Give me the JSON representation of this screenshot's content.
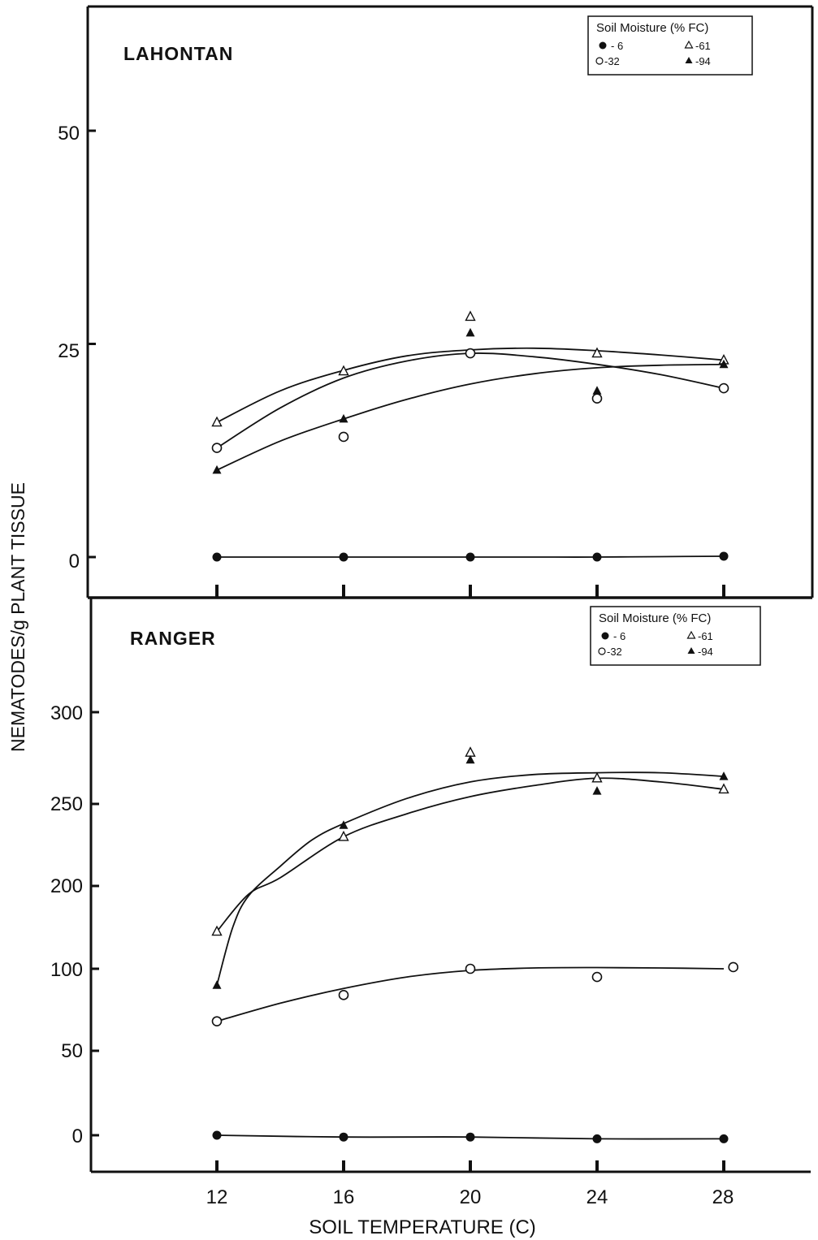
{
  "figure": {
    "xlabel": "SOIL TEMPERATURE (C)",
    "ylabel": "NEMATODES/g PLANT TISSUE"
  },
  "chart_data": [
    {
      "type": "scatter",
      "title": "LAHONTAN",
      "x_ticks": [
        "12",
        "16",
        "20",
        "24",
        "28"
      ],
      "y_ticks": [
        {
          "value": 0,
          "label": "0"
        },
        {
          "value": 25,
          "label": "25"
        },
        {
          "value": 50,
          "label": "50"
        }
      ],
      "ylim": [
        -4.5,
        63
      ],
      "legend": {
        "title": "Soil Moisture (% FC)",
        "entries": [
          {
            "label": "- 6",
            "marker": "filled-circle"
          },
          {
            "label": "-61",
            "marker": "open-triangle"
          },
          {
            "label": "-32",
            "marker": "open-circle"
          },
          {
            "label": "-94",
            "marker": "filled-triangle"
          }
        ]
      },
      "series": [
        {
          "marker": "filled-circle",
          "x": [
            12,
            16,
            20,
            24,
            28
          ],
          "y": [
            0,
            0,
            0,
            0,
            0.1
          ]
        },
        {
          "marker": "open-circle",
          "x": [
            12,
            16,
            20,
            24,
            28
          ],
          "y": [
            12.8,
            14.1,
            23.9,
            18.6,
            19.8
          ]
        },
        {
          "marker": "open-triangle",
          "x": [
            12,
            16,
            20,
            24,
            28
          ],
          "y": [
            15.8,
            21.8,
            28.2,
            23.9,
            23.1
          ]
        },
        {
          "marker": "filled-triangle",
          "x": [
            12,
            16,
            20,
            24,
            28
          ],
          "y": [
            10.2,
            16.2,
            26.3,
            19.5,
            22.6
          ]
        }
      ],
      "curves": [
        {
          "x": [
            12,
            14,
            16,
            18,
            20,
            22,
            24,
            26,
            28
          ],
          "y": [
            0,
            0,
            0,
            0,
            0,
            0,
            0,
            0.05,
            0.1
          ]
        },
        {
          "x": [
            12,
            14,
            16,
            18,
            20,
            22,
            24,
            26,
            28
          ],
          "y": [
            12.8,
            17.5,
            21.0,
            23.0,
            23.9,
            23.5,
            22.6,
            21.4,
            19.8
          ]
        },
        {
          "x": [
            12,
            14,
            16,
            18,
            20,
            22,
            24,
            26,
            28
          ],
          "y": [
            15.8,
            19.5,
            21.9,
            23.6,
            24.3,
            24.5,
            24.2,
            23.7,
            23.1
          ]
        },
        {
          "x": [
            12,
            14,
            16,
            18,
            20,
            22,
            24,
            26,
            28
          ],
          "y": [
            10.2,
            13.6,
            16.2,
            18.5,
            20.3,
            21.5,
            22.2,
            22.5,
            22.6
          ]
        }
      ]
    },
    {
      "type": "scatter",
      "title": "RANGER",
      "x_ticks": [
        "12",
        "16",
        "20",
        "24",
        "28"
      ],
      "y_ticks": [
        {
          "value": 0,
          "label": "0"
        },
        {
          "value": 50,
          "label": "50"
        },
        {
          "value": 100,
          "label": "100"
        },
        {
          "value": 200,
          "label": "200"
        },
        {
          "value": 250,
          "label": "250"
        },
        {
          "value": 300,
          "label": "300"
        }
      ],
      "legend": {
        "title": "Soil Moisture (% FC)",
        "entries": [
          {
            "label": "- 6",
            "marker": "filled-circle"
          },
          {
            "label": "-61",
            "marker": "open-triangle"
          },
          {
            "label": "-32",
            "marker": "open-circle"
          },
          {
            "label": "-94",
            "marker": "filled-triangle"
          }
        ]
      },
      "series": [
        {
          "marker": "filled-circle",
          "x": [
            12,
            16,
            20,
            24,
            28
          ],
          "y": [
            0,
            -1,
            -1,
            -2,
            -2
          ]
        },
        {
          "marker": "open-circle",
          "x": [
            12,
            16,
            20,
            24,
            28.3
          ],
          "y": [
            68,
            84,
            100,
            95,
            102
          ]
        },
        {
          "marker": "open-triangle",
          "x": [
            12,
            16,
            20,
            24,
            28
          ],
          "y": [
            145,
            230,
            278,
            264,
            258
          ]
        },
        {
          "marker": "filled-triangle",
          "x": [
            12,
            16,
            20,
            24,
            28
          ],
          "y": [
            90,
            237,
            274,
            257,
            265
          ]
        }
      ],
      "curves": [
        {
          "x": [
            12,
            16,
            20,
            24,
            28
          ],
          "y": [
            0,
            -1,
            -1,
            -2,
            -2
          ]
        },
        {
          "x": [
            12,
            14,
            16,
            18,
            20,
            22,
            24,
            26,
            28
          ],
          "y": [
            68,
            79,
            88,
            95,
            99,
            101,
            101.5,
            101,
            100
          ]
        },
        {
          "x": [
            12,
            13,
            14,
            16,
            18,
            20,
            22,
            24,
            26,
            28
          ],
          "y": [
            145,
            190,
            205,
            230,
            244,
            254,
            260,
            264,
            262,
            258
          ]
        },
        {
          "x": [
            12,
            12.5,
            13,
            14,
            15,
            16,
            18,
            20,
            22,
            24,
            26,
            28
          ],
          "y": [
            90,
            150,
            188,
            212,
            228,
            238,
            253,
            262,
            266,
            267,
            267,
            265
          ]
        }
      ]
    }
  ]
}
